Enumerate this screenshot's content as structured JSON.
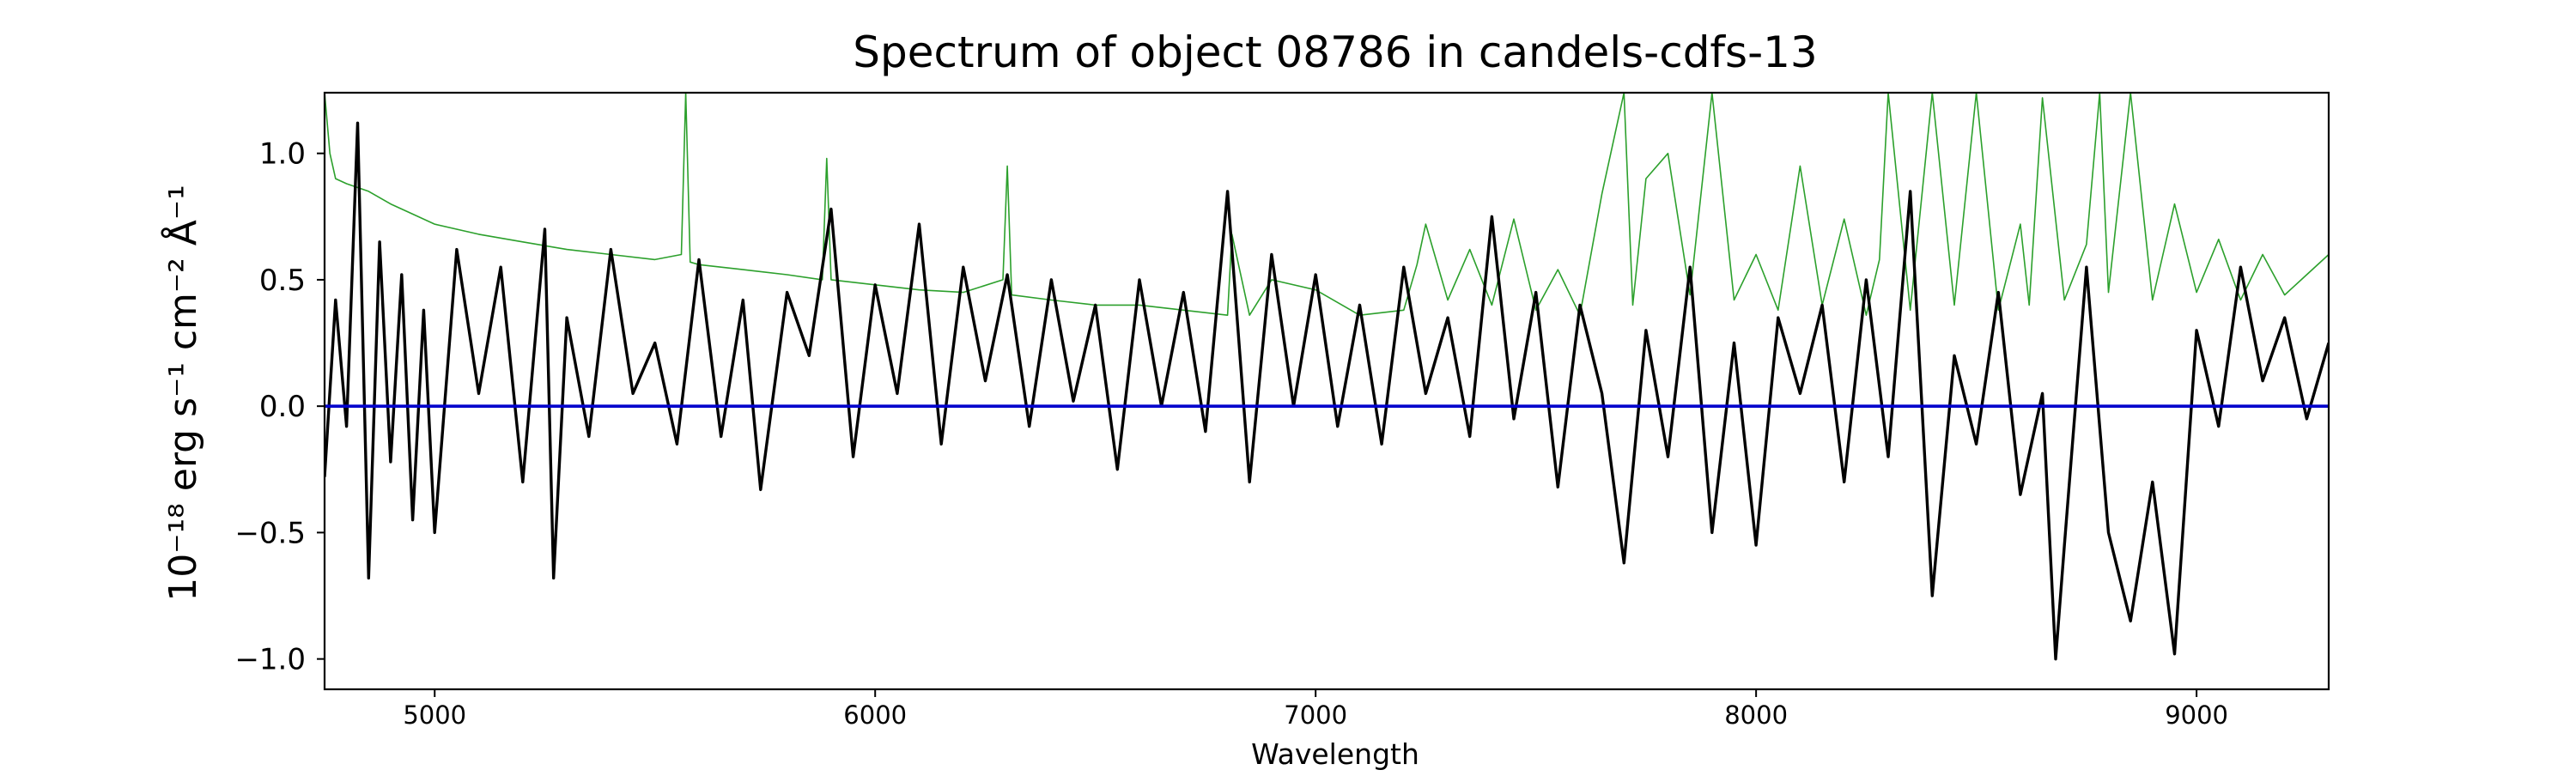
{
  "chart_data": {
    "type": "line",
    "title": "Spectrum of object 08786 in candels-cdfs-13",
    "xlabel": "Wavelength",
    "ylabel": "10⁻¹⁸ erg s⁻¹ cm⁻² Å⁻¹",
    "xlim": [
      4750,
      9300
    ],
    "ylim": [
      -1.12,
      1.24
    ],
    "xticks": [
      5000,
      6000,
      7000,
      8000,
      9000
    ],
    "xtick_labels": [
      "5000",
      "6000",
      "7000",
      "8000",
      "9000"
    ],
    "yticks": [
      1.0,
      0.5,
      0.0,
      -0.5,
      -1.0
    ],
    "ytick_labels": [
      "1.0",
      "0.5",
      "0.0",
      "−0.5",
      "−1.0"
    ],
    "grid": false,
    "series": [
      {
        "role": "flux",
        "color": "#000000",
        "x": [
          4750,
          4775,
          4800,
          4825,
          4850,
          4875,
          4900,
          4925,
          4950,
          4975,
          5000,
          5050,
          5100,
          5150,
          5200,
          5250,
          5270,
          5300,
          5350,
          5400,
          5450,
          5500,
          5550,
          5600,
          5650,
          5700,
          5740,
          5800,
          5850,
          5900,
          5950,
          6000,
          6050,
          6100,
          6150,
          6200,
          6250,
          6300,
          6350,
          6400,
          6450,
          6500,
          6550,
          6600,
          6650,
          6700,
          6750,
          6800,
          6850,
          6900,
          6950,
          7000,
          7050,
          7100,
          7150,
          7200,
          7250,
          7300,
          7350,
          7400,
          7450,
          7500,
          7550,
          7600,
          7650,
          7700,
          7750,
          7800,
          7850,
          7900,
          7950,
          8000,
          8050,
          8100,
          8150,
          8200,
          8250,
          8300,
          8350,
          8400,
          8450,
          8500,
          8550,
          8600,
          8650,
          8680,
          8700,
          8750,
          8800,
          8850,
          8900,
          8950,
          9000,
          9050,
          9100,
          9150,
          9200,
          9250,
          9300
        ],
        "y": [
          -0.28,
          0.42,
          -0.08,
          1.12,
          -0.68,
          0.65,
          -0.22,
          0.52,
          -0.45,
          0.38,
          -0.5,
          0.62,
          0.05,
          0.55,
          -0.3,
          0.7,
          -0.68,
          0.35,
          -0.12,
          0.62,
          0.05,
          0.25,
          -0.15,
          0.58,
          -0.12,
          0.42,
          -0.33,
          0.45,
          0.2,
          0.78,
          -0.2,
          0.48,
          0.05,
          0.72,
          -0.15,
          0.55,
          0.1,
          0.52,
          -0.08,
          0.5,
          0.02,
          0.4,
          -0.25,
          0.5,
          0.0,
          0.45,
          -0.1,
          0.85,
          -0.3,
          0.6,
          0.0,
          0.52,
          -0.08,
          0.4,
          -0.15,
          0.55,
          0.05,
          0.35,
          -0.12,
          0.75,
          -0.05,
          0.45,
          -0.32,
          0.4,
          0.05,
          -0.62,
          0.3,
          -0.2,
          0.55,
          -0.5,
          0.25,
          -0.55,
          0.35,
          0.05,
          0.4,
          -0.3,
          0.5,
          -0.2,
          0.85,
          -0.75,
          0.2,
          -0.15,
          0.45,
          -0.35,
          0.05,
          -1.0,
          -0.55,
          0.55,
          -0.5,
          -0.85,
          -0.3,
          -0.98,
          0.3,
          -0.08,
          0.55,
          0.1,
          0.35,
          -0.05,
          0.25
        ]
      },
      {
        "role": "error",
        "color": "#2ca02c",
        "x": [
          4750,
          4762,
          4775,
          4800,
          4850,
          4900,
          4950,
          5000,
          5100,
          5200,
          5300,
          5400,
          5500,
          5560,
          5570,
          5580,
          5600,
          5700,
          5800,
          5880,
          5890,
          5900,
          6000,
          6100,
          6200,
          6290,
          6300,
          6310,
          6400,
          6500,
          6600,
          6700,
          6800,
          6810,
          6850,
          6900,
          7000,
          7100,
          7200,
          7230,
          7250,
          7300,
          7350,
          7400,
          7450,
          7500,
          7550,
          7600,
          7650,
          7700,
          7720,
          7750,
          7800,
          7850,
          7900,
          7950,
          8000,
          8050,
          8100,
          8150,
          8200,
          8250,
          8280,
          8300,
          8350,
          8400,
          8450,
          8500,
          8550,
          8600,
          8620,
          8650,
          8700,
          8750,
          8780,
          8800,
          8850,
          8900,
          8950,
          9000,
          9050,
          9100,
          9150,
          9200,
          9250,
          9300
        ],
        "y": [
          1.24,
          1.0,
          0.9,
          0.88,
          0.85,
          0.8,
          0.76,
          0.72,
          0.68,
          0.65,
          0.62,
          0.6,
          0.58,
          0.6,
          1.24,
          0.57,
          0.56,
          0.54,
          0.52,
          0.5,
          0.98,
          0.5,
          0.48,
          0.46,
          0.45,
          0.5,
          0.95,
          0.44,
          0.42,
          0.4,
          0.4,
          0.38,
          0.36,
          0.68,
          0.36,
          0.5,
          0.46,
          0.36,
          0.38,
          0.56,
          0.72,
          0.42,
          0.62,
          0.4,
          0.74,
          0.38,
          0.54,
          0.36,
          0.84,
          1.24,
          0.4,
          0.9,
          1.0,
          0.44,
          1.24,
          0.42,
          0.6,
          0.38,
          0.95,
          0.4,
          0.74,
          0.36,
          0.58,
          1.24,
          0.38,
          1.24,
          0.4,
          1.24,
          0.38,
          0.72,
          0.4,
          1.22,
          0.42,
          0.64,
          1.24,
          0.45,
          1.24,
          0.42,
          0.8,
          0.45,
          0.66,
          0.42,
          0.6,
          0.44,
          0.52,
          0.6
        ]
      },
      {
        "role": "zero",
        "color": "#0000cc",
        "x": [
          4750,
          9300
        ],
        "y": [
          0.0,
          0.0
        ]
      }
    ]
  }
}
